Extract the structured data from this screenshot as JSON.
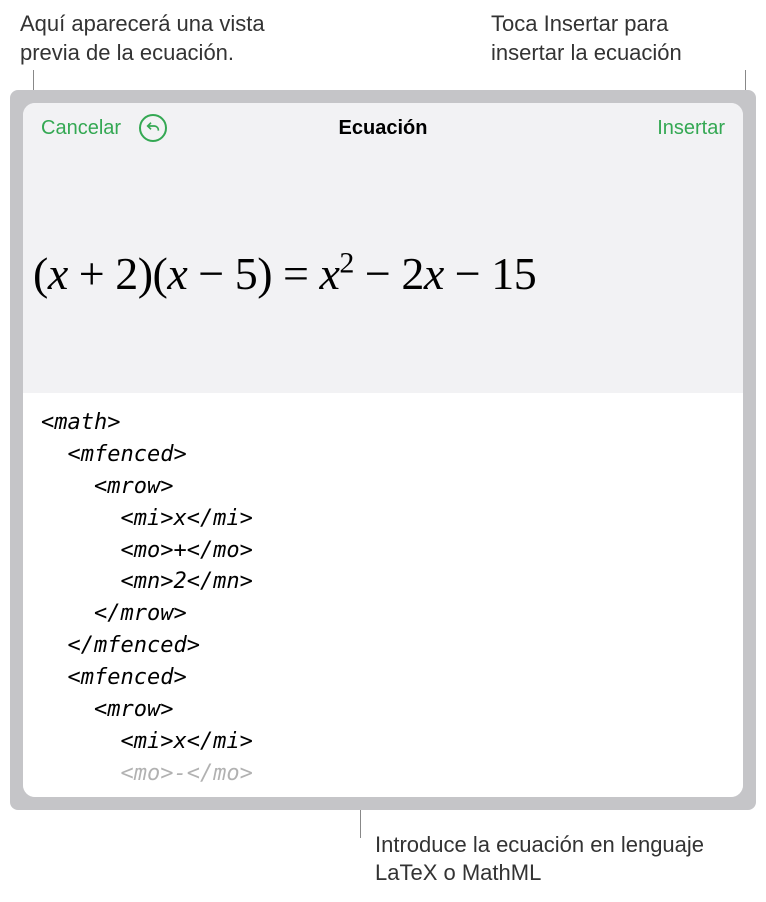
{
  "callouts": {
    "topLeft": "Aquí aparecerá una vista previa de la ecuación.",
    "topRight": "Toca Insertar para insertar la ecuación",
    "bottom": "Introduce la ecuación en lenguaje LaTeX o MathML"
  },
  "dialog": {
    "cancelLabel": "Cancelar",
    "title": "Ecuación",
    "insertLabel": "Insertar"
  },
  "equation": {
    "rendered_html": "(<span class=\"var\">x</span> + 2)(<span class=\"var\">x</span> − 5) = <span class=\"var\">x</span><sup>2</sup> − 2<span class=\"var\">x</span> − 15"
  },
  "code": {
    "lines": [
      "<math>",
      "  <mfenced>",
      "    <mrow>",
      "      <mi>x</mi>",
      "      <mo>+</mo>",
      "      <mn>2</mn>",
      "    </mrow>",
      "  </mfenced>",
      "  <mfenced>",
      "    <mrow>",
      "      <mi>x</mi>"
    ],
    "fadeLine": "      <mo>-</mo>"
  },
  "colors": {
    "accent": "#34a853",
    "dialogBg": "#f2f2f4",
    "codeBg": "#ffffff",
    "frameBg": "#c5c5c8"
  }
}
